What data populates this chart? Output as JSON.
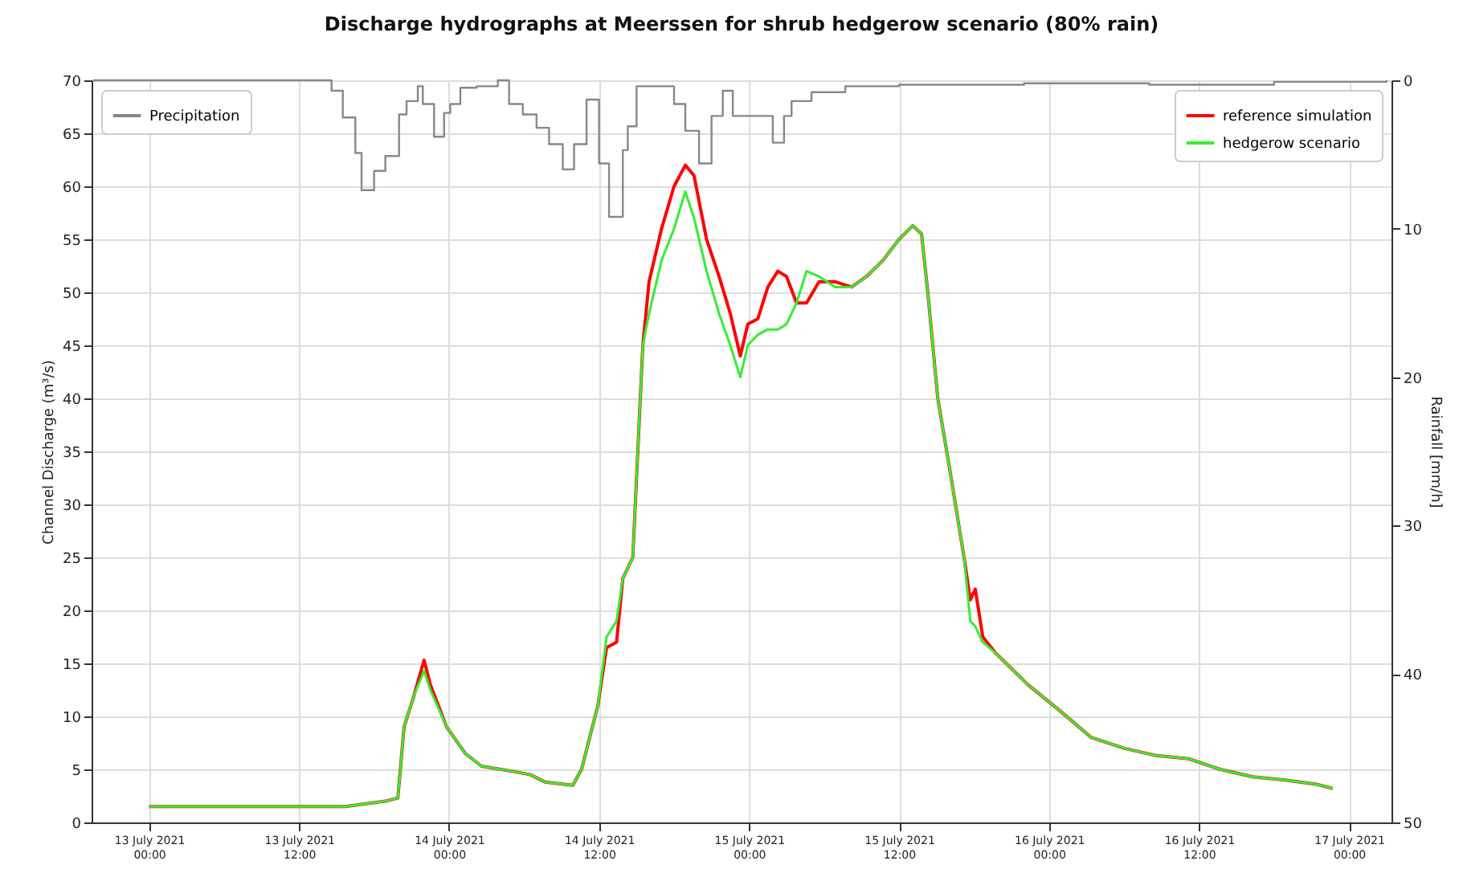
{
  "chart_data": {
    "type": "line",
    "title": "Discharge hydrographs at Meerssen for shrub hedgerow scenario (80% rain)",
    "ylabel": "Channel Discharge (m³/s)",
    "y2label": "Rainfall [mm/h]",
    "x": [
      "2021-07-13T00:00",
      "2021-07-13T15:42",
      "2021-07-13T18:54",
      "2021-07-13T19:54",
      "2021-07-13T20:24",
      "2021-07-13T21:12",
      "2021-07-13T22:00",
      "2021-07-13T22:30",
      "2021-07-13T23:48",
      "2021-07-14T01:18",
      "2021-07-14T02:36",
      "2021-07-14T05:12",
      "2021-07-14T06:30",
      "2021-07-14T07:42",
      "2021-07-14T09:54",
      "2021-07-14T10:36",
      "2021-07-14T11:54",
      "2021-07-14T12:36",
      "2021-07-14T13:24",
      "2021-07-14T13:54",
      "2021-07-14T14:42",
      "2021-07-14T15:30",
      "2021-07-14T16:00",
      "2021-07-14T17:00",
      "2021-07-14T18:00",
      "2021-07-14T18:54",
      "2021-07-14T19:36",
      "2021-07-14T20:36",
      "2021-07-14T21:36",
      "2021-07-14T22:30",
      "2021-07-14T23:18",
      "2021-07-14T23:54",
      "2021-07-15T00:42",
      "2021-07-15T01:30",
      "2021-07-15T02:18",
      "2021-07-15T03:00",
      "2021-07-15T03:48",
      "2021-07-15T04:36",
      "2021-07-15T05:36",
      "2021-07-15T06:54",
      "2021-07-15T08:12",
      "2021-07-15T09:24",
      "2021-07-15T10:42",
      "2021-07-15T12:00",
      "2021-07-15T13:06",
      "2021-07-15T13:48",
      "2021-07-15T14:18",
      "2021-07-15T15:06",
      "2021-07-15T16:06",
      "2021-07-15T17:12",
      "2021-07-15T17:42",
      "2021-07-15T18:06",
      "2021-07-15T18:42",
      "2021-07-15T19:42",
      "2021-07-15T22:18",
      "2021-07-16T00:54",
      "2021-07-16T03:24",
      "2021-07-16T06:00",
      "2021-07-16T08:36",
      "2021-07-16T11:12",
      "2021-07-16T13:42",
      "2021-07-16T16:18",
      "2021-07-16T18:54",
      "2021-07-16T21:24",
      "2021-07-16T22:42"
    ],
    "series": [
      {
        "name": "reference simulation",
        "color": "#ff0000",
        "values": [
          1.5,
          1.5,
          2.0,
          2.3,
          9,
          12,
          15.3,
          13,
          9,
          6.5,
          5.3,
          4.8,
          4.5,
          3.8,
          3.5,
          5,
          11,
          16.5,
          17,
          23,
          25,
          45,
          51,
          56,
          60,
          62,
          61,
          55,
          51.5,
          48,
          44,
          47,
          47.5,
          50.5,
          52,
          51.5,
          49,
          49,
          51,
          51,
          50.5,
          51.5,
          53,
          55,
          56.3,
          55.5,
          50,
          40,
          33,
          25,
          21,
          22,
          17.5,
          16,
          13,
          10.5,
          8,
          7,
          6.3,
          6,
          5,
          4.3,
          4,
          3.6,
          3.2
        ]
      },
      {
        "name": "hedgerow scenario",
        "color": "#33ee33",
        "values": [
          1.5,
          1.5,
          2.0,
          2.3,
          9,
          12,
          14.3,
          12.5,
          9,
          6.5,
          5.3,
          4.8,
          4.5,
          3.8,
          3.5,
          5,
          11,
          17.5,
          19,
          23,
          25,
          45,
          48,
          53,
          56,
          59.5,
          57,
          52,
          48,
          45,
          42,
          45,
          46,
          46.5,
          46.5,
          47,
          49,
          52,
          51.5,
          50.5,
          50.5,
          51.5,
          53,
          55,
          56.3,
          55.5,
          50,
          40,
          33,
          25,
          19,
          18.5,
          17,
          16,
          13,
          10.5,
          8,
          7,
          6.3,
          6,
          5,
          4.3,
          4,
          3.6,
          3.2
        ]
      },
      {
        "name": "Precipitation",
        "type": "step",
        "axis": "y2",
        "color": "#888888",
        "x": [
          "2021-07-12T19:30",
          "2021-07-13T14:36",
          "2021-07-13T15:30",
          "2021-07-13T16:30",
          "2021-07-13T17:00",
          "2021-07-13T18:00",
          "2021-07-13T18:54",
          "2021-07-13T20:00",
          "2021-07-13T20:36",
          "2021-07-13T21:30",
          "2021-07-13T21:54",
          "2021-07-13T22:48",
          "2021-07-13T23:36",
          "2021-07-14T00:06",
          "2021-07-14T00:54",
          "2021-07-14T02:12",
          "2021-07-14T03:54",
          "2021-07-14T04:48",
          "2021-07-14T05:54",
          "2021-07-14T07:00",
          "2021-07-14T08:00",
          "2021-07-14T09:06",
          "2021-07-14T10:00",
          "2021-07-14T11:00",
          "2021-07-14T12:00",
          "2021-07-14T12:48",
          "2021-07-14T13:54",
          "2021-07-14T14:18",
          "2021-07-14T15:00",
          "2021-07-14T18:00",
          "2021-07-14T18:54",
          "2021-07-14T20:00",
          "2021-07-14T21:00",
          "2021-07-14T21:54",
          "2021-07-14T22:42",
          "2021-07-15T01:54",
          "2021-07-15T02:48",
          "2021-07-15T03:24",
          "2021-07-15T05:00",
          "2021-07-15T07:42",
          "2021-07-15T12:00",
          "2021-07-15T22:00",
          "2021-07-16T08:00",
          "2021-07-16T18:00",
          "2021-07-17T03:00"
        ],
        "values": [
          0,
          0.7,
          2.5,
          4.9,
          7.4,
          6.1,
          5.1,
          2.3,
          1.4,
          0.4,
          1.6,
          3.8,
          2.2,
          1.6,
          0.5,
          0.4,
          0,
          1.6,
          2.3,
          3.2,
          4.3,
          6.0,
          4.3,
          1.3,
          5.6,
          9.2,
          4.7,
          3.1,
          0.4,
          1.6,
          3.4,
          5.6,
          2.4,
          0.7,
          2.4,
          4.2,
          2.4,
          1.4,
          0.8,
          0.4,
          0.3,
          0.2,
          0.3,
          0.1,
          0
        ]
      }
    ],
    "xlim": [
      "2021-07-12T19:24",
      "2021-07-17T03:24"
    ],
    "xticks": [
      {
        "value": "2021-07-13T00:00",
        "label": "13 July 2021\n00:00"
      },
      {
        "value": "2021-07-13T12:00",
        "label": "13 July 2021\n12:00"
      },
      {
        "value": "2021-07-14T00:00",
        "label": "14 July 2021\n00:00"
      },
      {
        "value": "2021-07-14T12:00",
        "label": "14 July 2021\n12:00"
      },
      {
        "value": "2021-07-15T00:00",
        "label": "15 July 2021\n00:00"
      },
      {
        "value": "2021-07-15T12:00",
        "label": "15 July 2021\n12:00"
      },
      {
        "value": "2021-07-16T00:00",
        "label": "16 July 2021\n00:00"
      },
      {
        "value": "2021-07-16T12:00",
        "label": "16 July 2021\n12:00"
      },
      {
        "value": "2021-07-17T00:00",
        "label": "17 July 2021\n00:00"
      }
    ],
    "ylim": [
      0,
      70
    ],
    "yticks": [
      0,
      5,
      10,
      15,
      20,
      25,
      30,
      35,
      40,
      45,
      50,
      55,
      60,
      65,
      70
    ],
    "y2lim": [
      50,
      0
    ],
    "y2ticks": [
      0,
      10,
      20,
      30,
      40,
      50
    ],
    "grid": true,
    "legend": "top right"
  }
}
